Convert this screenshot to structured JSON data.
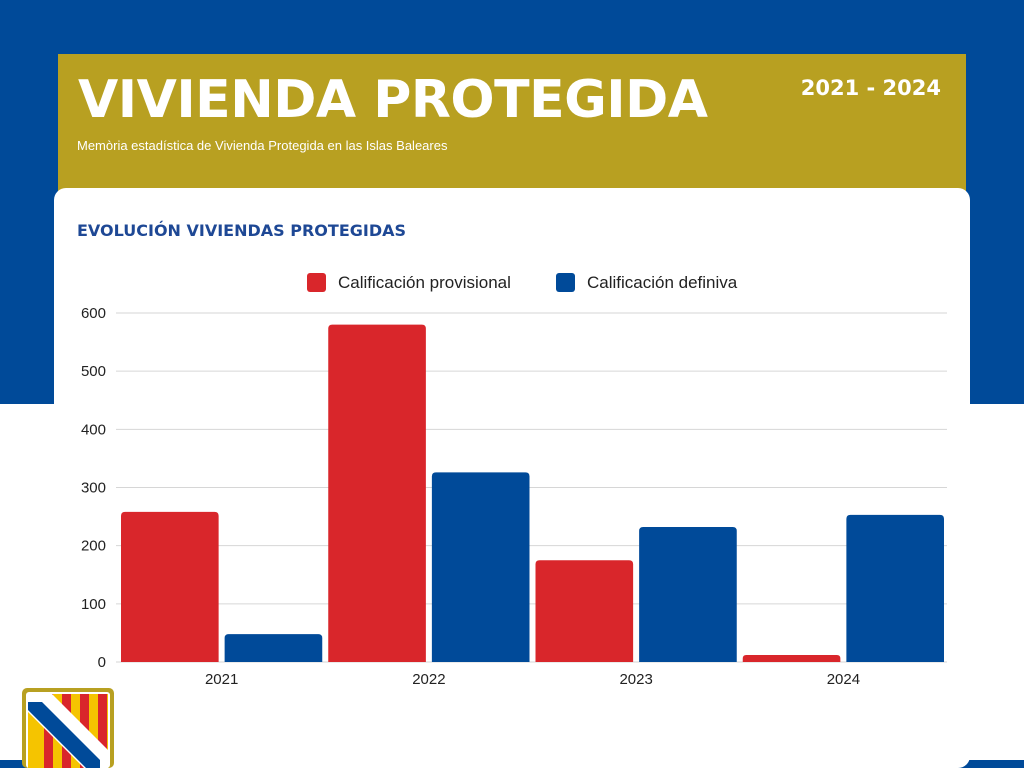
{
  "header": {
    "title": "VIVIENDA PROTEGIDA",
    "years": "2021 - 2024",
    "subtitle": "Memòria estadística de Vivienda Protegida en las Islas Baleares"
  },
  "colors": {
    "background_blue": "#004a99",
    "header_gold": "#b8a021",
    "series_red": "#d9262b",
    "series_blue": "#004a99",
    "title_blue": "#1e4895"
  },
  "logo": {
    "icon": "balearic-flag-logo-icon"
  },
  "chart_data": {
    "type": "bar",
    "title": "EVOLUCIÓN VIVIENDAS PROTEGIDAS",
    "categories": [
      "2021",
      "2022",
      "2023",
      "2024"
    ],
    "series": [
      {
        "name": "Calificación provisional",
        "color": "#d9262b",
        "values": [
          258,
          580,
          175,
          12
        ]
      },
      {
        "name": "Calificación definiva",
        "color": "#004a99",
        "values": [
          48,
          326,
          232,
          253
        ]
      }
    ],
    "yticks": [
      0,
      100,
      200,
      300,
      400,
      500,
      600
    ],
    "ylim": [
      0,
      600
    ],
    "grid": true,
    "legend_position": "top-center",
    "xlabel": "",
    "ylabel": ""
  }
}
